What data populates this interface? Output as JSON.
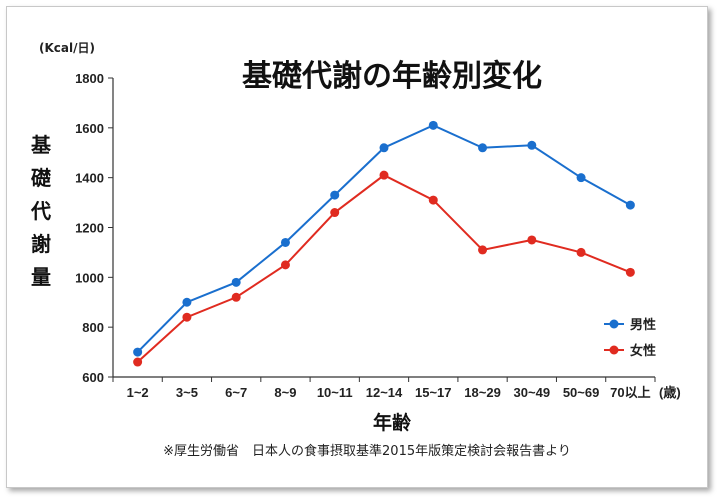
{
  "chart_data": {
    "type": "line",
    "title": "基礎代謝の年齢別変化",
    "unit_label": "(Kcal/日)",
    "ylabel": "基礎代謝量",
    "xlabel": "年齢",
    "x_unit_label": "(歳)",
    "source": "※厚生労働省　日本人の食事摂取基準2015年版策定検討会報告書より",
    "categories": [
      "1~2",
      "3~5",
      "6~7",
      "8~9",
      "10~11",
      "12~14",
      "15~17",
      "18~29",
      "30~49",
      "50~69",
      "70以上"
    ],
    "ylim": [
      600,
      1800
    ],
    "yticks": [
      600,
      800,
      1000,
      1200,
      1400,
      1600,
      1800
    ],
    "grid": false,
    "legend_position": "right",
    "series": [
      {
        "name": "男性",
        "color": "#1a6fce",
        "values": [
          700,
          900,
          980,
          1140,
          1330,
          1520,
          1610,
          1520,
          1530,
          1400,
          1290
        ]
      },
      {
        "name": "女性",
        "color": "#e02b20",
        "values": [
          660,
          840,
          920,
          1050,
          1260,
          1410,
          1310,
          1110,
          1150,
          1100,
          1020
        ]
      }
    ]
  }
}
